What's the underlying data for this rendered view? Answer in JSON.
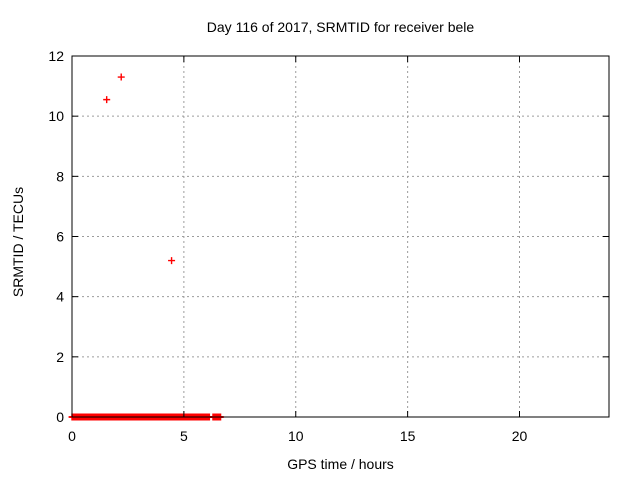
{
  "chart_data": {
    "type": "scatter",
    "title": "Day 116 of 2017, SRMTID for receiver bele",
    "xlabel": "GPS time / hours",
    "ylabel": "SRMTID / TECUs",
    "xlim": [
      0,
      24
    ],
    "ylim": [
      0,
      12
    ],
    "xticks": [
      0,
      5,
      10,
      15,
      20
    ],
    "yticks": [
      0,
      2,
      4,
      6,
      8,
      10,
      12
    ],
    "grid": true,
    "legend_position": "none",
    "marker": "plus",
    "marker_color": "#ff0000",
    "axis_color": "#000000",
    "grid_color": "#9c9c9c",
    "background_color": "#ffffff",
    "series": [
      {
        "name": "SRMTID",
        "outlier_points": [
          {
            "x": 1.55,
            "y": 10.55
          },
          {
            "x": 2.2,
            "y": 11.3
          },
          {
            "x": 4.45,
            "y": 5.2
          }
        ],
        "baseline_segments": [
          {
            "x_start": 0.0,
            "x_end": 6.15,
            "y": 0
          },
          {
            "x_start": 6.3,
            "x_end": 6.65,
            "y": 0
          }
        ]
      }
    ]
  }
}
